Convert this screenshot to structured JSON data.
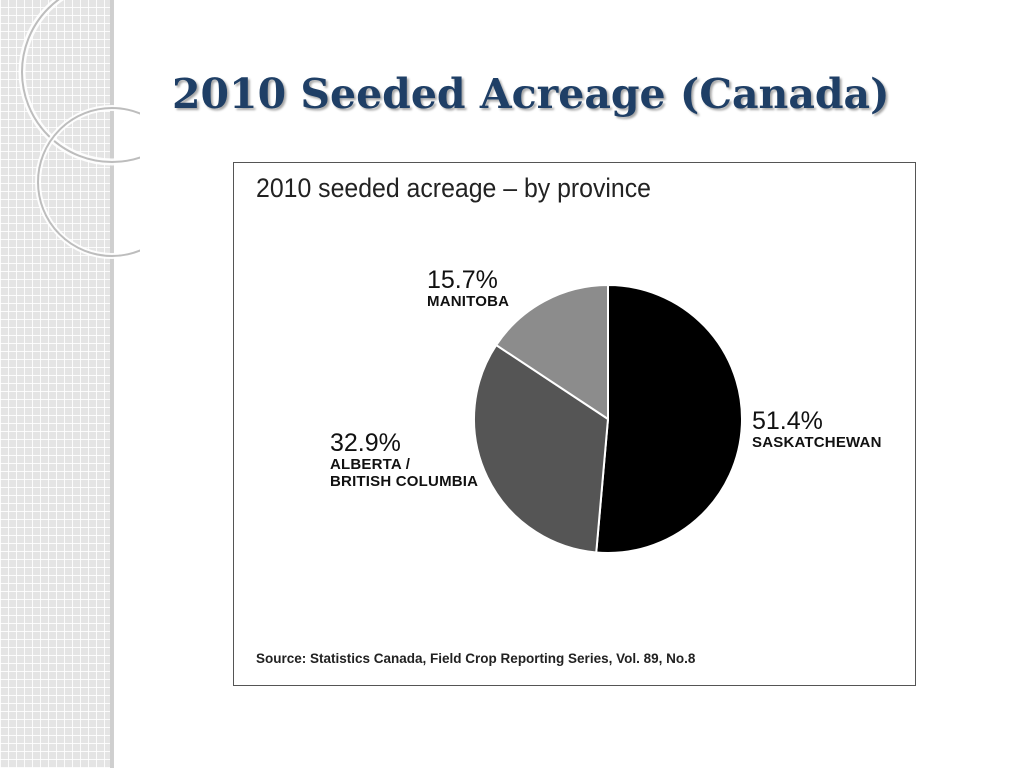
{
  "slide": {
    "title": "2010 Seeded Acreage (Canada)"
  },
  "chart_data": {
    "type": "pie",
    "title": "2010 seeded acreage – by province",
    "slices": [
      {
        "label": "SASKATCHEWAN",
        "value": 51.4,
        "value_text": "51.4%",
        "color": "#000000"
      },
      {
        "label": "ALBERTA /\nBRITISH COLUMBIA",
        "value": 32.9,
        "value_text": "32.9%",
        "color": "#555555"
      },
      {
        "label": "MANITOBA",
        "value": 15.7,
        "value_text": "15.7%",
        "color": "#8c8c8c"
      }
    ],
    "start": "12 o'clock",
    "direction": "clockwise",
    "source": "Source: Statistics Canada, Field Crop Reporting Series, Vol. 89, No.8"
  }
}
